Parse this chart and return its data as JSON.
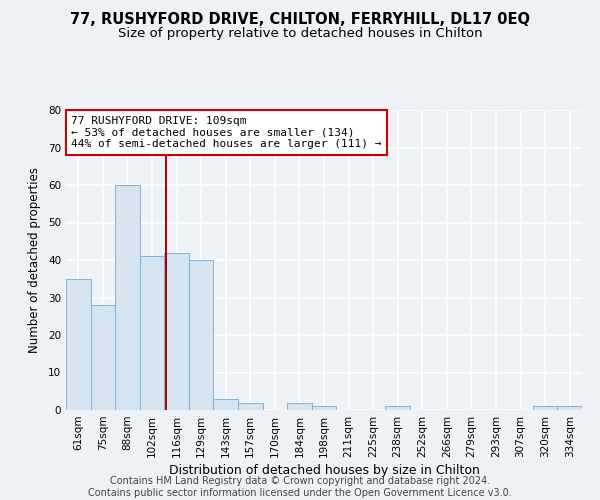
{
  "title1": "77, RUSHYFORD DRIVE, CHILTON, FERRYHILL, DL17 0EQ",
  "title2": "Size of property relative to detached houses in Chilton",
  "xlabel": "Distribution of detached houses by size in Chilton",
  "ylabel": "Number of detached properties",
  "categories": [
    "61sqm",
    "75sqm",
    "88sqm",
    "102sqm",
    "116sqm",
    "129sqm",
    "143sqm",
    "157sqm",
    "170sqm",
    "184sqm",
    "198sqm",
    "211sqm",
    "225sqm",
    "238sqm",
    "252sqm",
    "266sqm",
    "279sqm",
    "293sqm",
    "307sqm",
    "320sqm",
    "334sqm"
  ],
  "values": [
    35,
    28,
    60,
    41,
    42,
    40,
    3,
    2,
    0,
    2,
    1,
    0,
    0,
    1,
    0,
    0,
    0,
    0,
    0,
    1,
    1
  ],
  "bar_color": "#d6e4f0",
  "bar_edge_color": "#7fb3d3",
  "annotation_line1": "77 RUSHYFORD DRIVE: 109sqm",
  "annotation_line2": "← 53% of detached houses are smaller (134)",
  "annotation_line3": "44% of semi-detached houses are larger (111) →",
  "vline_x_index": 3.55,
  "vline_color": "#aa0000",
  "annotation_box_facecolor": "#ffffff",
  "annotation_box_edgecolor": "#cc0000",
  "ylim": [
    0,
    80
  ],
  "yticks": [
    0,
    10,
    20,
    30,
    40,
    50,
    60,
    70,
    80
  ],
  "footer_text": "Contains HM Land Registry data © Crown copyright and database right 2024.\nContains public sector information licensed under the Open Government Licence v3.0.",
  "bg_color": "#eef2f7",
  "grid_color": "#ffffff",
  "title1_fontsize": 10.5,
  "title2_fontsize": 9.5,
  "xlabel_fontsize": 9,
  "ylabel_fontsize": 8.5,
  "tick_fontsize": 7.5,
  "annotation_fontsize": 8,
  "footer_fontsize": 7
}
